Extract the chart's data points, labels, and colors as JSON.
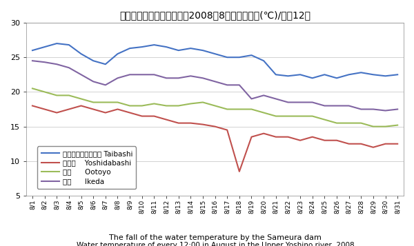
{
  "title": "早明浦ダムによる低水温・2008年8月の河川水温(℃)/毎時12時",
  "xlabel1": "The fall of the water temperature by the Sameura dam",
  "xlabel2": "Water temperature of every 12:00 in August in the Upper Yoshino river, 2008",
  "ylim": [
    5,
    30
  ],
  "yticks": [
    5,
    10,
    15,
    20,
    25,
    30
  ],
  "x_labels": [
    "8/1",
    "8/2",
    "8/3",
    "8/4",
    "8/5",
    "8/6",
    "8/7",
    "8/8",
    "8/9",
    "8/10",
    "8/11",
    "8/12",
    "8/13",
    "8/14",
    "8/15",
    "8/16",
    "8/17",
    "8/18",
    "8/19",
    "8/20",
    "8/21",
    "8/22",
    "8/23",
    "8/24",
    "8/25",
    "8/26",
    "8/27",
    "8/28",
    "8/29",
    "8/30",
    "8/31"
  ],
  "series": {
    "Taibashi": {
      "label_jp": "田井橋（地蔵寺川）",
      "label_en": " Taibashi",
      "color": "#4472C4",
      "values": [
        26.0,
        26.5,
        27.0,
        26.8,
        25.5,
        24.5,
        24.0,
        25.5,
        26.3,
        26.5,
        26.8,
        26.5,
        26.0,
        26.3,
        26.0,
        25.5,
        25.0,
        25.0,
        25.3,
        24.5,
        22.5,
        22.3,
        22.5,
        22.0,
        22.5,
        22.0,
        22.5,
        22.8,
        22.5,
        22.3,
        22.5
      ]
    },
    "Yoshidabashi": {
      "label_jp": "吉田橋",
      "label_en": "    Yoshidabashi",
      "color": "#C0504D",
      "values": [
        18.0,
        17.5,
        17.0,
        17.5,
        18.0,
        17.5,
        17.0,
        17.5,
        17.0,
        16.5,
        16.5,
        16.0,
        15.5,
        15.5,
        15.3,
        15.0,
        14.5,
        8.5,
        13.5,
        14.0,
        13.5,
        13.5,
        13.0,
        13.5,
        13.0,
        13.0,
        12.5,
        12.5,
        12.0,
        12.5,
        12.5
      ]
    },
    "Ootoyo": {
      "label_jp": "大豊",
      "label_en": "      Ootoyo",
      "color": "#9BBB59",
      "values": [
        20.5,
        20.0,
        19.5,
        19.5,
        19.0,
        18.5,
        18.5,
        18.5,
        18.0,
        18.0,
        18.3,
        18.0,
        18.0,
        18.3,
        18.5,
        18.0,
        17.5,
        17.5,
        17.5,
        17.0,
        16.5,
        16.5,
        16.5,
        16.5,
        16.0,
        15.5,
        15.5,
        15.5,
        15.0,
        15.0,
        15.2
      ]
    },
    "Ikeda": {
      "label_jp": "池田",
      "label_en": "      Ikeda",
      "color": "#8064A2",
      "values": [
        24.5,
        24.3,
        24.0,
        23.5,
        22.5,
        21.5,
        21.0,
        22.0,
        22.5,
        22.5,
        22.5,
        22.0,
        22.0,
        22.3,
        22.0,
        21.5,
        21.0,
        21.0,
        19.0,
        19.5,
        19.0,
        18.5,
        18.5,
        18.5,
        18.0,
        18.0,
        18.0,
        17.5,
        17.5,
        17.3,
        17.5
      ]
    }
  },
  "background_color": "#FFFFFF",
  "grid_color": "#C0C0C0"
}
